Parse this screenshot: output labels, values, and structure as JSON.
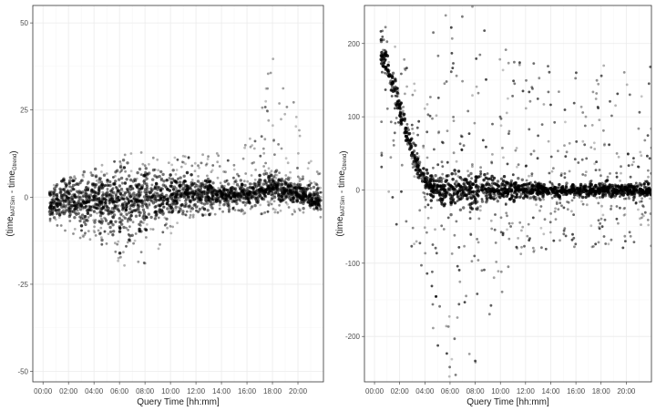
{
  "chart_data": [
    {
      "type": "scatter",
      "xlabel": "Query Time [hh:mm]",
      "ylabel": {
        "base1": "time",
        "sub1": "MATSim",
        "sep": " - ",
        "base2": "time",
        "sub2": "Gtrend",
        "open": "(",
        "close": ")"
      },
      "x_ticks": [
        "00:00",
        "02:00",
        "04:00",
        "06:00",
        "08:00",
        "10:00",
        "12:00",
        "14:00",
        "16:00",
        "18:00",
        "20:00"
      ],
      "x_tick_hours": [
        0,
        2,
        4,
        6,
        8,
        10,
        12,
        14,
        16,
        18,
        20
      ],
      "xlim": [
        -0.8,
        22.0
      ],
      "y_ticks": [
        -50,
        -25,
        0,
        25,
        50
      ],
      "ylim": [
        -53,
        55
      ],
      "grid": true,
      "legend": "none",
      "point_color": "#000000",
      "spread_profile": {
        "hours": [
          0.5,
          1.0,
          2.0,
          3.0,
          4.0,
          5.0,
          6.0,
          7.0,
          8.0,
          9.0,
          10.0,
          11.0,
          12.0,
          13.0,
          14.0,
          15.0,
          16.0,
          16.5,
          17.0,
          18.0,
          19.0,
          20.0,
          21.0,
          21.8
        ],
        "center": [
          -2,
          -1,
          -1,
          -1,
          -1,
          -1,
          -1,
          -1,
          0,
          0,
          0,
          1,
          1,
          1,
          1,
          1,
          1,
          1,
          2,
          3,
          2,
          1,
          0,
          -1
        ],
        "core_half": [
          3,
          4,
          5,
          6,
          7,
          7,
          9,
          9,
          7,
          6,
          5,
          4,
          4,
          4,
          3,
          3,
          3,
          3,
          3,
          3,
          3,
          3,
          3,
          3
        ],
        "tail_low": [
          -8,
          -9,
          -10,
          -12,
          -13,
          -15,
          -19,
          -22,
          -20,
          -18,
          -11,
          -8,
          -6,
          -5,
          -5,
          -5,
          -5,
          -5,
          -5,
          -5,
          -5,
          -5,
          -5,
          -6
        ],
        "tail_high": [
          2,
          4,
          5,
          7,
          9,
          10,
          12,
          14,
          13,
          12,
          11,
          13,
          12,
          14,
          13,
          14,
          16,
          25,
          30,
          40,
          34,
          26,
          14,
          6
        ]
      }
    },
    {
      "type": "scatter",
      "xlabel": "Query Time [hh:mm]",
      "ylabel": {
        "base1": "time",
        "sub1": "MATSim",
        "sep": " - ",
        "base2": "time",
        "sub2": "Gtrend",
        "open": "(",
        "close": ")"
      },
      "x_ticks": [
        "00:00",
        "02:00",
        "04:00",
        "06:00",
        "08:00",
        "10:00",
        "12:00",
        "14:00",
        "16:00",
        "18:00",
        "20:00"
      ],
      "x_tick_hours": [
        0,
        2,
        4,
        6,
        8,
        10,
        12,
        14,
        16,
        18,
        20
      ],
      "xlim": [
        -0.8,
        22.0
      ],
      "y_ticks": [
        -200,
        -100,
        0,
        100,
        200
      ],
      "ylim": [
        -262,
        252
      ],
      "grid": true,
      "legend": "none",
      "point_color": "#000000",
      "spread_profile": {
        "hours": [
          0.5,
          1.0,
          1.5,
          2.0,
          2.5,
          3.0,
          3.5,
          4.0,
          5.0,
          6.0,
          7.0,
          8.0,
          9.0,
          10.0,
          12.0,
          14.0,
          16.0,
          18.0,
          20.0,
          22.0
        ],
        "center": [
          190,
          170,
          140,
          110,
          80,
          55,
          30,
          10,
          2,
          0,
          0,
          0,
          0,
          0,
          0,
          0,
          0,
          0,
          0,
          0
        ],
        "core_half": [
          15,
          15,
          15,
          14,
          14,
          14,
          14,
          14,
          16,
          20,
          22,
          20,
          16,
          12,
          10,
          8,
          8,
          8,
          8,
          8
        ],
        "tail_low": [
          -10,
          -20,
          -40,
          -60,
          -70,
          -80,
          -100,
          -120,
          -240,
          -260,
          -260,
          -250,
          -210,
          -150,
          -90,
          -80,
          -80,
          -80,
          -80,
          -80
        ],
        "tail_high": [
          230,
          220,
          200,
          190,
          180,
          160,
          150,
          150,
          260,
          260,
          260,
          260,
          230,
          200,
          190,
          180,
          170,
          170,
          170,
          170
        ]
      }
    }
  ]
}
